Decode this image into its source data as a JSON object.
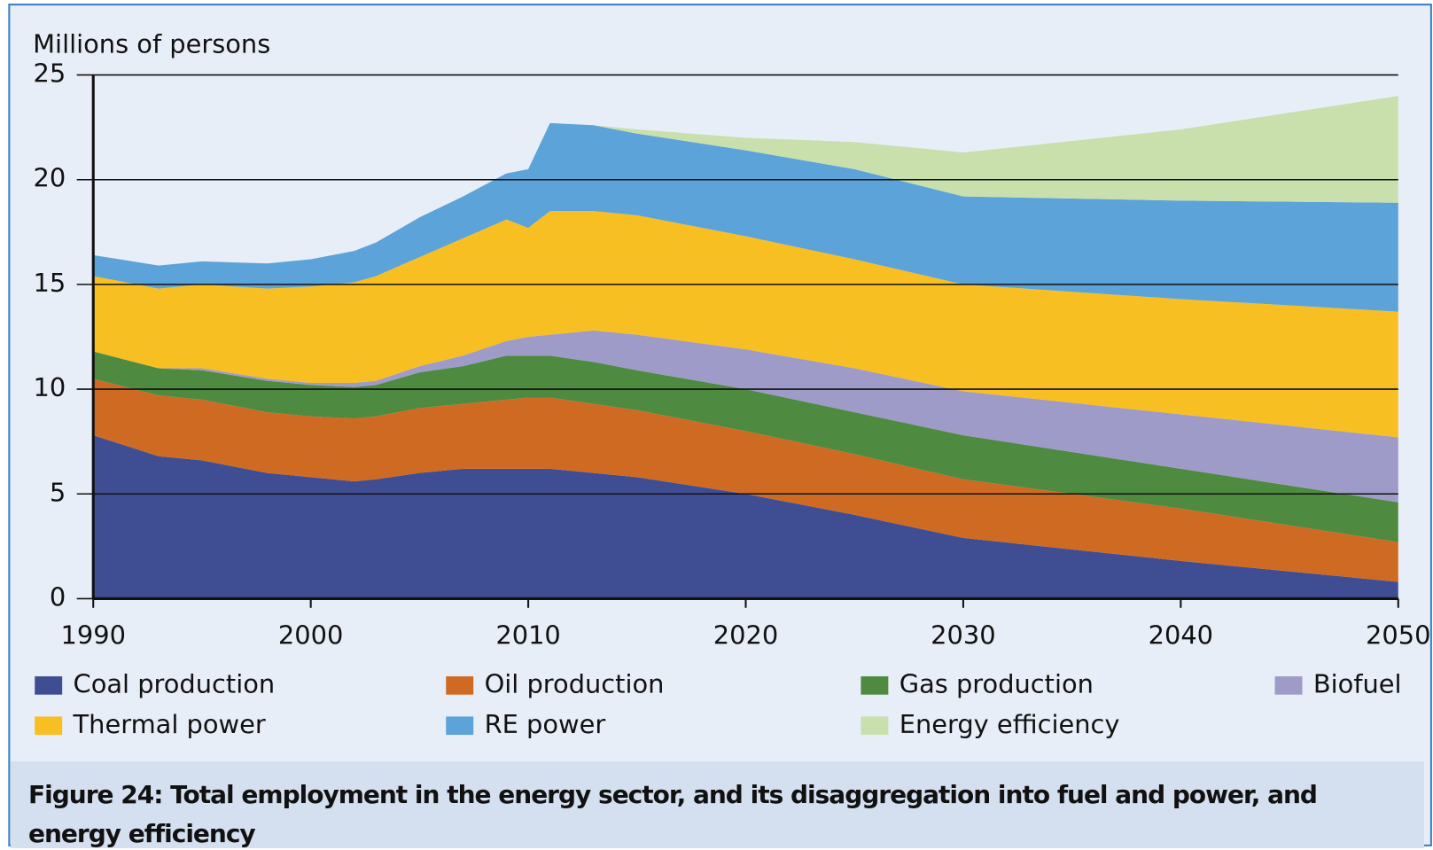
{
  "chart_data": {
    "type": "stacked_area",
    "y_label": "Millions of persons",
    "caption": "Figure 24: Total employment in the energy sector, and its disaggregation into fuel and power, and energy efficiency",
    "x": [
      1990,
      1993,
      1995,
      1998,
      2000,
      2002,
      2003,
      2005,
      2007,
      2009,
      2010,
      2011,
      2013,
      2015,
      2020,
      2025,
      2030,
      2040,
      2050
    ],
    "xlim": [
      1990,
      2050
    ],
    "xticks": [
      1990,
      2000,
      2010,
      2020,
      2030,
      2040,
      2050
    ],
    "ylim": [
      0,
      25
    ],
    "yticks": [
      0,
      5,
      10,
      15,
      20,
      25
    ],
    "grid": true,
    "series": [
      {
        "name": "Coal production",
        "color": "#3f4e93",
        "values": [
          7.8,
          6.8,
          6.6,
          6.0,
          5.8,
          5.6,
          5.7,
          6.0,
          6.2,
          6.2,
          6.2,
          6.2,
          6.0,
          5.8,
          5.0,
          4.0,
          2.9,
          1.8,
          0.8
        ]
      },
      {
        "name": "Oil production",
        "color": "#cf6a22",
        "values": [
          2.7,
          2.9,
          2.9,
          2.9,
          2.9,
          3.0,
          3.0,
          3.1,
          3.1,
          3.3,
          3.4,
          3.4,
          3.3,
          3.2,
          3.0,
          2.9,
          2.8,
          2.5,
          1.9
        ]
      },
      {
        "name": "Gas production",
        "color": "#4e8a40",
        "values": [
          1.3,
          1.3,
          1.4,
          1.5,
          1.5,
          1.5,
          1.5,
          1.7,
          1.8,
          2.1,
          2.0,
          2.0,
          2.0,
          1.9,
          2.0,
          2.0,
          2.1,
          1.9,
          1.9
        ]
      },
      {
        "name": "Biofuel",
        "color": "#9e9bc8",
        "values": [
          0,
          0,
          0.1,
          0.1,
          0.1,
          0.2,
          0.2,
          0.3,
          0.5,
          0.7,
          0.9,
          1.0,
          1.5,
          1.7,
          1.9,
          2.1,
          2.1,
          2.6,
          3.1
        ]
      },
      {
        "name": "Thermal power",
        "color": "#f8bf22",
        "values": [
          3.6,
          3.8,
          4.0,
          4.3,
          4.6,
          4.8,
          5.0,
          5.2,
          5.6,
          5.8,
          5.2,
          5.9,
          5.7,
          5.7,
          5.4,
          5.2,
          5.1,
          5.5,
          6.0
        ]
      },
      {
        "name": "RE power",
        "color": "#5ba3d9",
        "values": [
          1.0,
          1.1,
          1.1,
          1.2,
          1.3,
          1.5,
          1.6,
          1.9,
          2.0,
          2.2,
          2.8,
          4.2,
          4.1,
          3.9,
          4.1,
          4.3,
          4.2,
          4.7,
          5.2
        ]
      },
      {
        "name": "Energy efficiency",
        "color": "#c9e0ad",
        "values": [
          0,
          0,
          0,
          0,
          0,
          0,
          0,
          0,
          0,
          0,
          0,
          0,
          0,
          0.2,
          0.6,
          1.3,
          2.1,
          3.4,
          5.1
        ]
      }
    ]
  }
}
